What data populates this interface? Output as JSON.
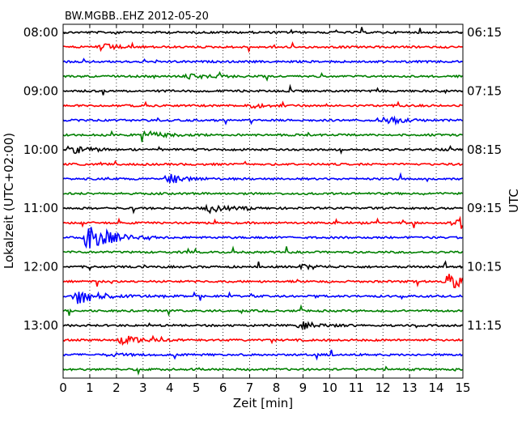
{
  "chart_data": {
    "type": "line",
    "title": "BW.MGBB..EHZ 2012-05-20",
    "xlabel": "Zeit  [min]",
    "ylabel_left": "Lokalzeit (UTC+02:00)",
    "ylabel_right": "UTC",
    "xlim": [
      0,
      15
    ],
    "x_ticks": [
      "0",
      "1",
      "2",
      "3",
      "4",
      "5",
      "6",
      "7",
      "8",
      "9",
      "10",
      "11",
      "12",
      "13",
      "14",
      "15"
    ],
    "grid": "vertical dotted",
    "trace_colors": [
      "#000000",
      "#ff0000",
      "#0000ff",
      "#008000"
    ],
    "left_tick_labels": [
      "08:00",
      "09:00",
      "10:00",
      "11:00",
      "12:00",
      "13:00"
    ],
    "right_tick_labels": [
      "06:15",
      "07:15",
      "08:15",
      "09:15",
      "10:15",
      "11:15"
    ],
    "trace_count": 24,
    "events": [
      {
        "trace": 1,
        "x": 1.4,
        "amp": 0.4
      },
      {
        "trace": 3,
        "x": 4.8,
        "amp": 0.3
      },
      {
        "trace": 5,
        "x": 7.0,
        "amp": 0.25
      },
      {
        "trace": 6,
        "x": 12.0,
        "amp": 0.55
      },
      {
        "trace": 7,
        "x": 3.1,
        "amp": 0.45
      },
      {
        "trace": 8,
        "x": 0.5,
        "amp": 0.4
      },
      {
        "trace": 10,
        "x": 4.0,
        "amp": 0.55
      },
      {
        "trace": 12,
        "x": 5.5,
        "amp": 0.45
      },
      {
        "trace": 13,
        "x": 14.8,
        "amp": 0.9
      },
      {
        "trace": 14,
        "x": 1.0,
        "amp": 2.2
      },
      {
        "trace": 16,
        "x": 9.0,
        "amp": 0.25
      },
      {
        "trace": 17,
        "x": 14.5,
        "amp": 0.9
      },
      {
        "trace": 18,
        "x": 0.6,
        "amp": 1.1
      },
      {
        "trace": 20,
        "x": 9.0,
        "amp": 0.4
      },
      {
        "trace": 21,
        "x": 2.3,
        "amp": 0.55
      },
      {
        "trace": 22,
        "x": 1.8,
        "amp": 0.15
      }
    ]
  }
}
